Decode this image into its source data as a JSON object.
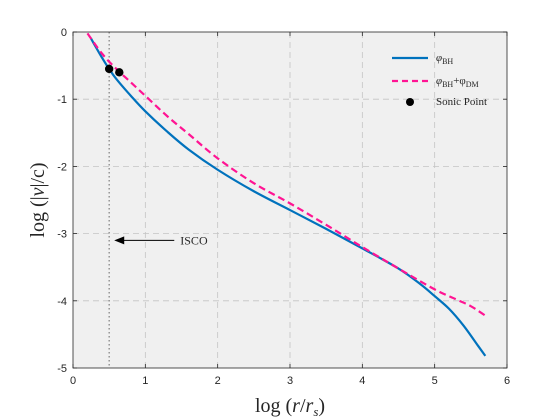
{
  "chart_data": {
    "type": "line",
    "xlabel": "log (r/r_s)",
    "ylabel": "log (|v|/c)",
    "xlim": [
      0,
      6
    ],
    "ylim": [
      -5,
      0
    ],
    "xticks": [
      "0",
      "1",
      "2",
      "3",
      "4",
      "5",
      "6"
    ],
    "yticks": [
      "0",
      "-1",
      "-2",
      "-3",
      "-4",
      "-5"
    ],
    "grid": true,
    "legend_position": "top-right",
    "colors": {
      "bh": "#0072BD",
      "dm": "#FF1493",
      "sonic": "#000000",
      "isco": "#7f7f7f",
      "background": "#f0f0f0"
    },
    "series": [
      {
        "name": "φ_BH",
        "name_base": "φ",
        "name_sub": "BH",
        "style": "solid",
        "x": [
          0.25,
          0.4,
          0.5,
          0.6,
          0.8,
          1.0,
          1.3,
          1.6,
          2.0,
          2.5,
          3.0,
          3.5,
          4.0,
          4.5,
          4.8,
          5.0,
          5.2,
          5.4,
          5.6,
          5.7
        ],
        "y": [
          -0.1,
          -0.38,
          -0.55,
          -0.7,
          -0.95,
          -1.18,
          -1.48,
          -1.75,
          -2.05,
          -2.37,
          -2.65,
          -2.93,
          -3.22,
          -3.52,
          -3.75,
          -3.93,
          -4.12,
          -4.37,
          -4.67,
          -4.82
        ]
      },
      {
        "name": "φ_BH+φ_DM",
        "name_base": "φ",
        "name_sub": "BH",
        "name_plus": "+φ",
        "name_sub2": "DM",
        "style": "dashed",
        "x": [
          0.2,
          0.4,
          0.6,
          0.8,
          1.0,
          1.3,
          1.6,
          2.0,
          2.5,
          3.0,
          3.5,
          4.0,
          4.5,
          5.0,
          5.3,
          5.5,
          5.7
        ],
        "y": [
          -0.02,
          -0.32,
          -0.55,
          -0.75,
          -0.95,
          -1.25,
          -1.52,
          -1.88,
          -2.25,
          -2.55,
          -2.87,
          -3.2,
          -3.52,
          -3.83,
          -3.98,
          -4.08,
          -4.22
        ]
      }
    ],
    "points": {
      "name": "Sonic Point",
      "x": [
        0.5,
        0.64
      ],
      "y": [
        -0.55,
        -0.6
      ]
    },
    "isco_line_x": 0.5,
    "annotation": {
      "text": "ISCO",
      "arrow_from": [
        1.4,
        -3.1
      ],
      "arrow_to": [
        0.57,
        -3.1
      ]
    }
  }
}
